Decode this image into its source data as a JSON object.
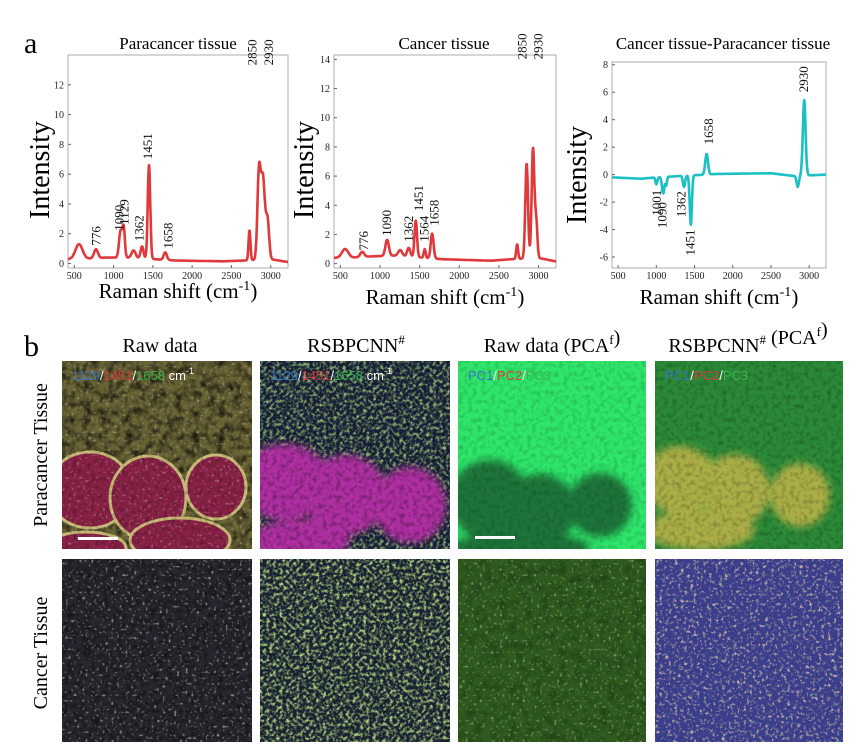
{
  "panel_a_letter": "a",
  "panel_b_letter": "b",
  "chart_data": [
    {
      "type": "line",
      "title": "Paracancer tissue",
      "xlabel": "Raman shift (cm⁻¹)",
      "ylabel": "Intensity",
      "xlim": [
        420,
        3220
      ],
      "ylim": [
        -0.3,
        14
      ],
      "xticks": [
        500,
        1000,
        1500,
        2000,
        2500,
        3000
      ],
      "yticks": [
        0,
        2,
        4,
        6,
        8,
        10,
        12
      ],
      "color": "#e0393b",
      "baseline": [
        [
          420,
          0.3
        ],
        [
          600,
          0.3
        ],
        [
          900,
          0.4
        ],
        [
          1200,
          0.4
        ],
        [
          1800,
          0.2
        ],
        [
          2400,
          0.15
        ],
        [
          2650,
          0.2
        ],
        [
          2990,
          0.3
        ],
        [
          3220,
          0.1
        ]
      ],
      "peaks": [
        {
          "x": 560,
          "h": 1.0,
          "w": 45
        },
        {
          "x": 776,
          "h": 0.6,
          "w": 25
        },
        {
          "x": 1090,
          "h": 1.8,
          "w": 20
        },
        {
          "x": 1129,
          "h": 1.9,
          "w": 15
        },
        {
          "x": 1255,
          "h": 0.5,
          "w": 25
        },
        {
          "x": 1362,
          "h": 0.8,
          "w": 18
        },
        {
          "x": 1451,
          "h": 6.3,
          "w": 16
        },
        {
          "x": 1658,
          "h": 0.5,
          "w": 20
        },
        {
          "x": 2730,
          "h": 2.0,
          "w": 12
        },
        {
          "x": 2850,
          "h": 5.5,
          "w": 20
        },
        {
          "x": 2900,
          "h": 5.5,
          "w": 26
        },
        {
          "x": 2960,
          "h": 2.5,
          "w": 20
        }
      ],
      "peak_labels": [
        "776",
        "1090",
        "1129",
        "1362",
        "1451",
        "1658",
        "2850",
        "2930"
      ]
    },
    {
      "type": "line",
      "title": "Cancer tissue",
      "xlabel": "Raman shift (cm⁻¹)",
      "ylabel": "Intensity",
      "xlim": [
        420,
        3220
      ],
      "ylim": [
        -0.3,
        14.3
      ],
      "xticks": [
        500,
        1000,
        1500,
        2000,
        2500,
        3000
      ],
      "yticks": [
        0,
        2,
        4,
        6,
        8,
        10,
        12,
        14
      ],
      "color": "#e0393b",
      "baseline": [
        [
          420,
          0.4
        ],
        [
          600,
          0.4
        ],
        [
          900,
          0.5
        ],
        [
          1200,
          0.55
        ],
        [
          1800,
          0.3
        ],
        [
          2400,
          0.2
        ],
        [
          2650,
          0.3
        ],
        [
          2990,
          0.4
        ],
        [
          3220,
          0.15
        ]
      ],
      "peaks": [
        {
          "x": 560,
          "h": 0.6,
          "w": 40
        },
        {
          "x": 776,
          "h": 0.35,
          "w": 25
        },
        {
          "x": 1090,
          "h": 1.1,
          "w": 22
        },
        {
          "x": 1255,
          "h": 0.4,
          "w": 25
        },
        {
          "x": 1362,
          "h": 0.6,
          "w": 20
        },
        {
          "x": 1451,
          "h": 2.5,
          "w": 16
        },
        {
          "x": 1564,
          "h": 0.6,
          "w": 12
        },
        {
          "x": 1658,
          "h": 1.7,
          "w": 18
        },
        {
          "x": 2730,
          "h": 1.0,
          "w": 12
        },
        {
          "x": 2850,
          "h": 6.5,
          "w": 17
        },
        {
          "x": 2930,
          "h": 7.5,
          "w": 17
        },
        {
          "x": 2970,
          "h": 2.5,
          "w": 15
        }
      ],
      "peak_labels": [
        "776",
        "1090",
        "1362",
        "1451",
        "1564",
        "1658",
        "2850",
        "2930"
      ]
    },
    {
      "type": "line",
      "title": "Cancer tissue-Paracancer tissue",
      "xlabel": "Raman shift (cm⁻¹)",
      "ylabel": "Intensity",
      "xlim": [
        420,
        3220
      ],
      "ylim": [
        -6.8,
        8.2
      ],
      "xticks": [
        500,
        1000,
        1500,
        2000,
        2500,
        3000
      ],
      "yticks": [
        -6,
        -4,
        -2,
        0,
        2,
        4,
        6,
        8
      ],
      "color": "#1bc0c4",
      "baseline": [
        [
          420,
          -0.2
        ],
        [
          800,
          -0.3
        ],
        [
          1000,
          -0.2
        ],
        [
          1800,
          0.05
        ],
        [
          2500,
          0.1
        ],
        [
          2800,
          -0.1
        ],
        [
          3220,
          0.0
        ]
      ],
      "peaks": [
        {
          "x": 1001,
          "h": -0.5,
          "w": 12
        },
        {
          "x": 1090,
          "h": -1.2,
          "w": 15
        },
        {
          "x": 1129,
          "h": -0.6,
          "w": 10
        },
        {
          "x": 1362,
          "h": -0.8,
          "w": 14
        },
        {
          "x": 1451,
          "h": -3.6,
          "w": 14
        },
        {
          "x": 1658,
          "h": 1.5,
          "w": 18
        },
        {
          "x": 2850,
          "h": -0.8,
          "w": 15
        },
        {
          "x": 2935,
          "h": 5.5,
          "w": 18
        }
      ],
      "peak_labels": [
        "1001",
        "1090",
        "1362",
        "1451",
        "1658",
        "2930"
      ]
    }
  ],
  "image_grid": {
    "titles": [
      "Raw data",
      "RSBPCNN#",
      "Raw data (PCAf)",
      "RSBPCNN# (PCAf)"
    ],
    "row_labels": [
      "Paracancer Tissue",
      "Cancer Tissue"
    ],
    "overlay_channels": {
      "wavenumbers": [
        "1129",
        "1451",
        "1658"
      ],
      "unit": "cm-1",
      "pcs": [
        "PC1",
        "PC2",
        "PC3"
      ]
    },
    "channel_colors": [
      "#3a76c8",
      "#e0393b",
      "#38b64a"
    ],
    "overlay_text_color": "#ffffff"
  }
}
